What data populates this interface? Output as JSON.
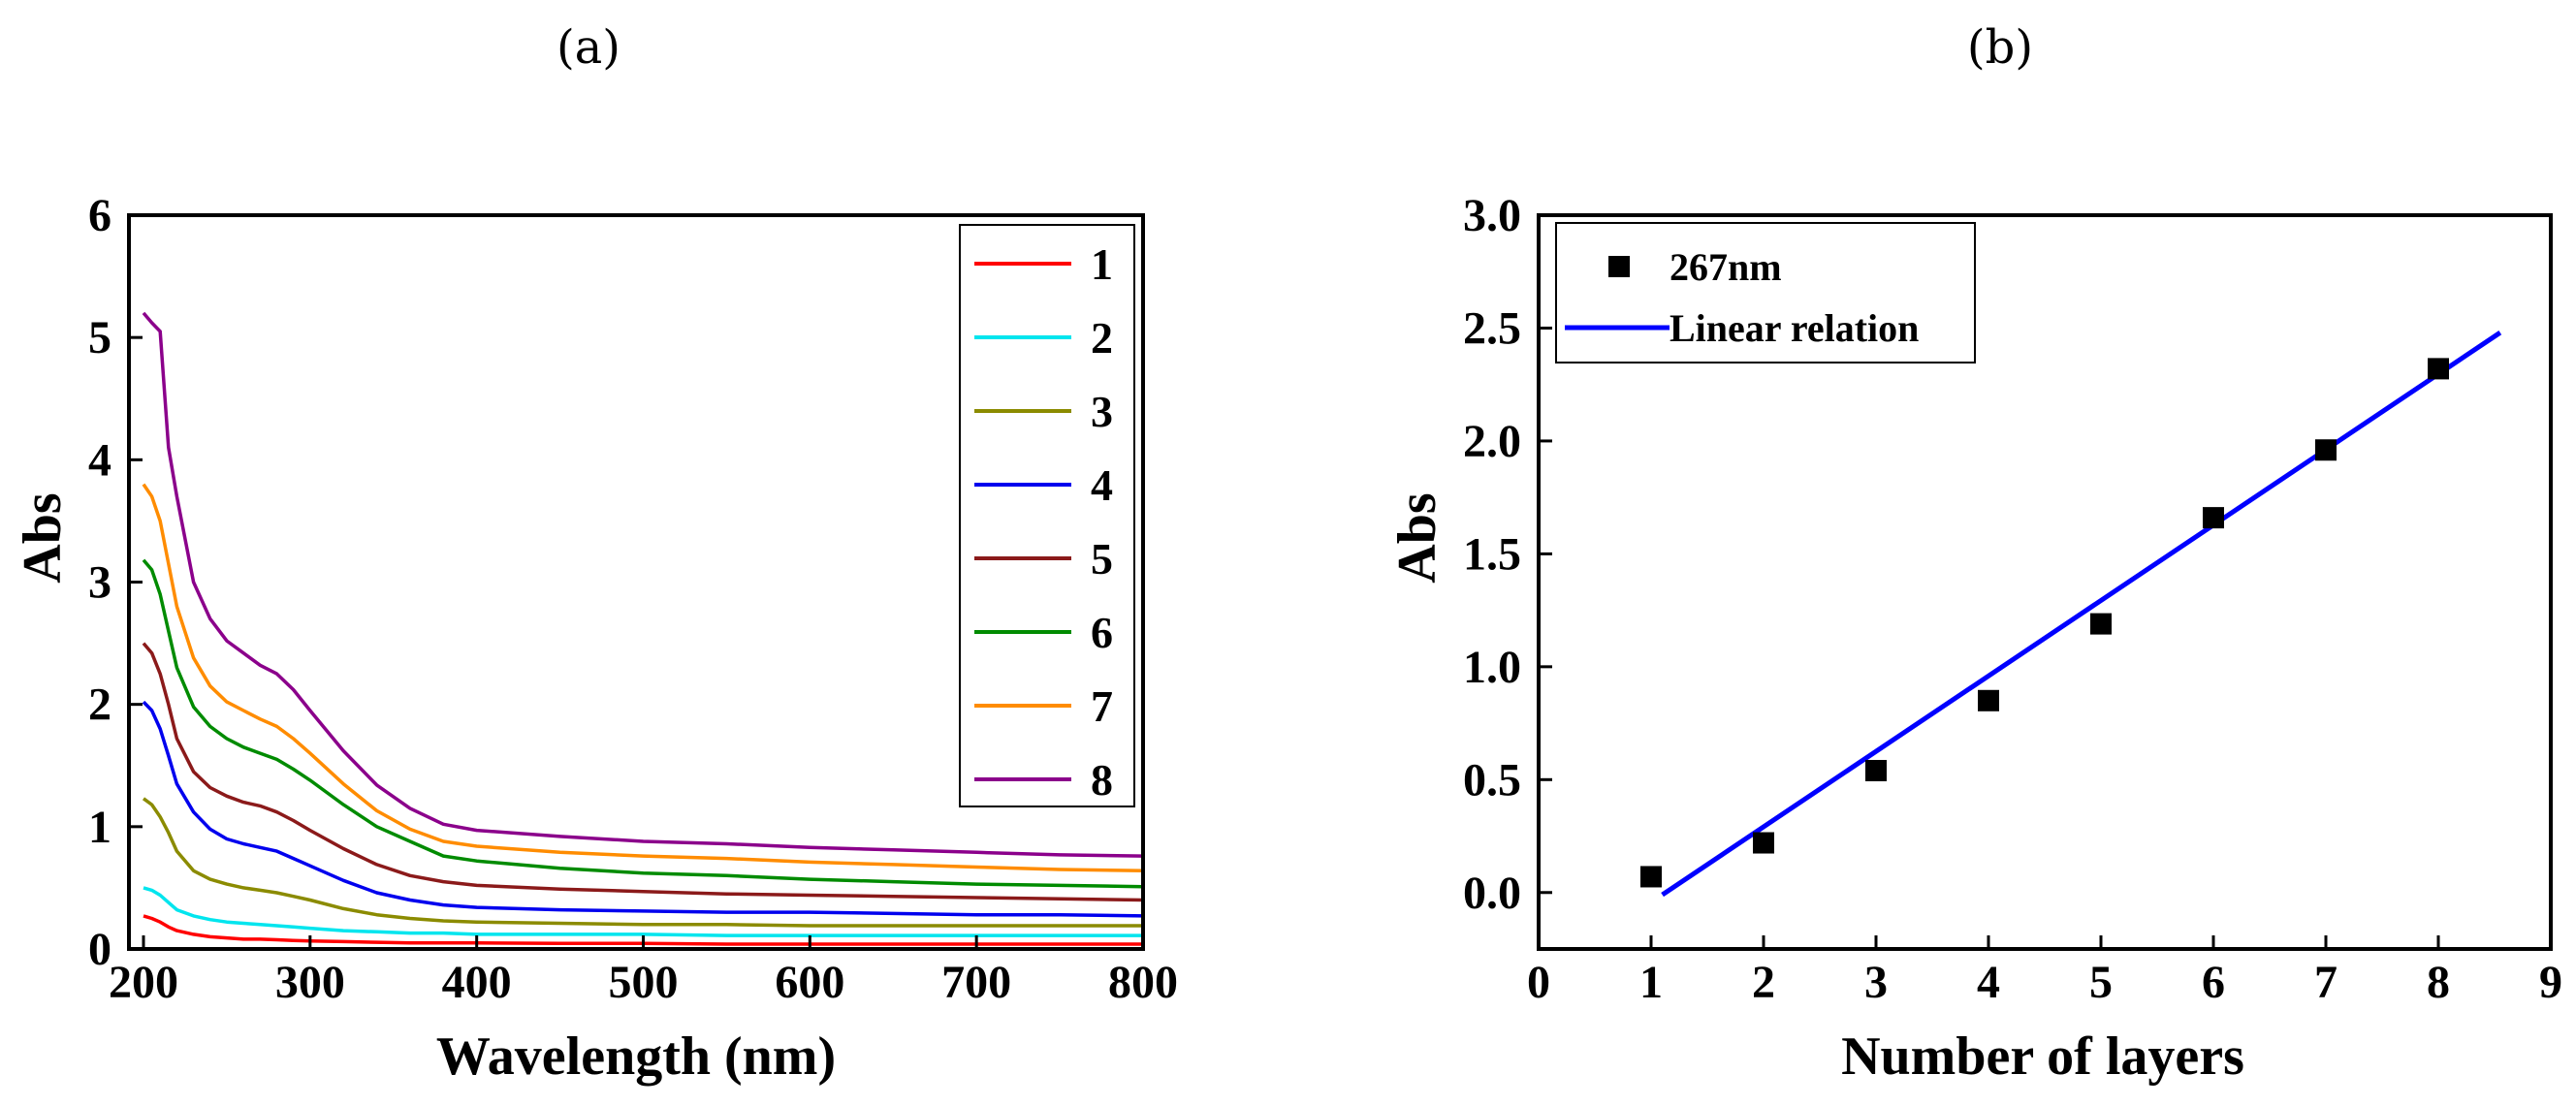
{
  "chart_data": [
    {
      "panel_label": "(a)",
      "type": "line",
      "xlabel": "Wavelength (nm)",
      "ylabel": "Abs",
      "xlim": [
        200,
        800
      ],
      "ylim": [
        0,
        6
      ],
      "xticks": [
        200,
        300,
        400,
        500,
        600,
        700,
        800
      ],
      "yticks": [
        0,
        1,
        2,
        3,
        4,
        5,
        6
      ],
      "x": [
        200,
        205,
        210,
        215,
        220,
        230,
        240,
        250,
        260,
        270,
        280,
        290,
        300,
        320,
        340,
        360,
        380,
        400,
        450,
        500,
        550,
        600,
        650,
        700,
        750,
        800
      ],
      "legend": [
        "1",
        "2",
        "3",
        "4",
        "5",
        "6",
        "7",
        "8"
      ],
      "series": [
        {
          "name": "1",
          "color": "#ff0000",
          "values": [
            0.27,
            0.25,
            0.22,
            0.18,
            0.15,
            0.12,
            0.1,
            0.09,
            0.08,
            0.08,
            0.075,
            0.07,
            0.065,
            0.06,
            0.055,
            0.05,
            0.05,
            0.05,
            0.045,
            0.045,
            0.04,
            0.04,
            0.04,
            0.04,
            0.04,
            0.04
          ]
        },
        {
          "name": "2",
          "color": "#00e5ee",
          "values": [
            0.5,
            0.48,
            0.44,
            0.38,
            0.32,
            0.27,
            0.24,
            0.22,
            0.21,
            0.2,
            0.19,
            0.18,
            0.17,
            0.15,
            0.14,
            0.13,
            0.13,
            0.12,
            0.12,
            0.12,
            0.11,
            0.11,
            0.11,
            0.11,
            0.11,
            0.11
          ]
        },
        {
          "name": "3",
          "color": "#8b8b00",
          "values": [
            1.23,
            1.18,
            1.08,
            0.95,
            0.8,
            0.64,
            0.57,
            0.53,
            0.5,
            0.48,
            0.46,
            0.43,
            0.4,
            0.33,
            0.28,
            0.25,
            0.23,
            0.22,
            0.21,
            0.2,
            0.2,
            0.19,
            0.19,
            0.19,
            0.19,
            0.19
          ]
        },
        {
          "name": "4",
          "color": "#0000ee",
          "values": [
            2.02,
            1.95,
            1.8,
            1.58,
            1.35,
            1.12,
            0.98,
            0.9,
            0.86,
            0.83,
            0.8,
            0.74,
            0.68,
            0.56,
            0.46,
            0.4,
            0.36,
            0.34,
            0.32,
            0.31,
            0.3,
            0.3,
            0.29,
            0.28,
            0.28,
            0.27
          ]
        },
        {
          "name": "5",
          "color": "#8b1a1a",
          "values": [
            2.5,
            2.42,
            2.25,
            2.0,
            1.72,
            1.45,
            1.32,
            1.25,
            1.2,
            1.17,
            1.12,
            1.05,
            0.97,
            0.82,
            0.69,
            0.6,
            0.55,
            0.52,
            0.49,
            0.47,
            0.45,
            0.44,
            0.43,
            0.42,
            0.41,
            0.4
          ]
        },
        {
          "name": "6",
          "color": "#008b00",
          "values": [
            3.18,
            3.1,
            2.9,
            2.6,
            2.3,
            1.98,
            1.82,
            1.72,
            1.65,
            1.6,
            1.55,
            1.47,
            1.38,
            1.18,
            1.0,
            0.88,
            0.76,
            0.72,
            0.66,
            0.62,
            0.6,
            0.57,
            0.55,
            0.53,
            0.52,
            0.51
          ]
        },
        {
          "name": "7",
          "color": "#ff8c00",
          "values": [
            3.8,
            3.7,
            3.5,
            3.15,
            2.8,
            2.38,
            2.15,
            2.02,
            1.95,
            1.88,
            1.82,
            1.72,
            1.6,
            1.35,
            1.13,
            0.98,
            0.88,
            0.84,
            0.79,
            0.76,
            0.74,
            0.71,
            0.69,
            0.67,
            0.65,
            0.64
          ]
        },
        {
          "name": "8",
          "color": "#8b008b",
          "values": [
            5.2,
            5.12,
            5.05,
            4.1,
            3.7,
            3.0,
            2.7,
            2.52,
            2.42,
            2.32,
            2.25,
            2.12,
            1.95,
            1.62,
            1.34,
            1.15,
            1.02,
            0.97,
            0.92,
            0.88,
            0.86,
            0.83,
            0.81,
            0.79,
            0.77,
            0.76
          ]
        }
      ]
    },
    {
      "panel_label": "(b)",
      "type": "scatter",
      "xlabel": "Number of layers",
      "ylabel": "Abs",
      "xlim": [
        0,
        9
      ],
      "ylim": [
        -0.25,
        3.0
      ],
      "xticks": [
        0,
        1,
        2,
        3,
        4,
        5,
        6,
        7,
        8,
        9
      ],
      "yticks": [
        "0.0",
        "0.5",
        "1.0",
        "1.5",
        "2.0",
        "2.5",
        "3.0"
      ],
      "series": [
        {
          "name": "267nm",
          "marker": "square",
          "color": "#000000",
          "x": [
            1,
            2,
            3,
            4,
            5,
            6,
            7,
            8
          ],
          "y": [
            0.07,
            0.22,
            0.54,
            0.85,
            1.19,
            1.66,
            1.96,
            2.32
          ]
        },
        {
          "name": "Linear relation",
          "type": "line",
          "color": "#0000ff",
          "x": [
            1.1,
            8.55
          ],
          "y": [
            -0.01,
            2.48
          ]
        }
      ],
      "legend": [
        "267nm",
        "Linear relation"
      ]
    }
  ]
}
